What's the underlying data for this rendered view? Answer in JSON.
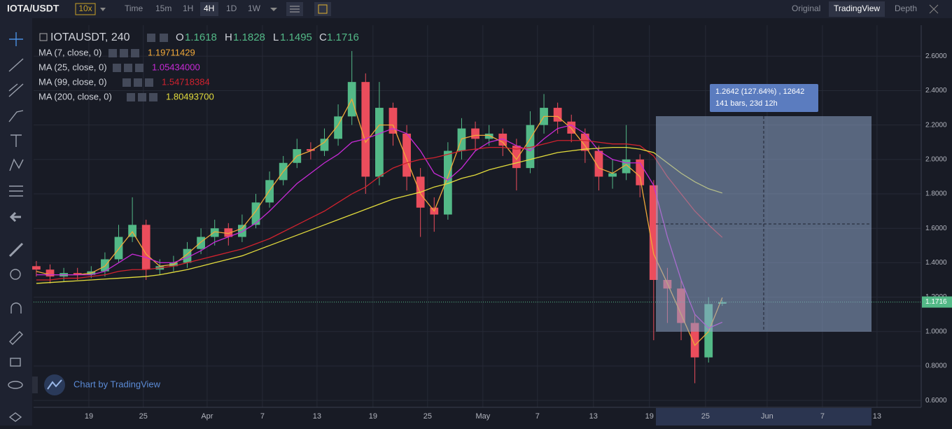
{
  "header": {
    "symbol": "IOTA/USDT",
    "leverage": "10x",
    "intervals": [
      "Time",
      "15m",
      "1H",
      "4H",
      "1D",
      "1W"
    ],
    "views": [
      "Original",
      "TradingView",
      "Depth"
    ]
  },
  "legend": {
    "symbol": "IOTAUSDT, 240",
    "keys": [
      "O",
      "H",
      "L",
      "C"
    ]
  },
  "measure": {
    "lines": [
      "1.2642 (127.64%) , 12642",
      "141 bars, 23d 12h"
    ]
  },
  "watermark": "Chart by TradingView",
  "chart_data": {
    "type": "candlestick",
    "up_color": "#53b987",
    "down_color": "#eb4d5c",
    "open": [
      1.38,
      1.36,
      1.32,
      1.34,
      1.33,
      1.35,
      1.42,
      1.55,
      1.62,
      1.36,
      1.38,
      1.4,
      1.48,
      1.55,
      1.6,
      1.55,
      1.62,
      1.75,
      1.88,
      1.98,
      2.06,
      2.05,
      2.12,
      2.25,
      2.45,
      1.9,
      2.3,
      2.15,
      1.9,
      1.72,
      1.68,
      2.05,
      2.18,
      2.12,
      2.15,
      2.08,
      1.95,
      2.2,
      2.3,
      2.22,
      2.15,
      2.05,
      1.9,
      1.92,
      2.0,
      1.85,
      1.3,
      1.25,
      1.05,
      0.85,
      1.1618
    ],
    "high": [
      1.41,
      1.39,
      1.37,
      1.37,
      1.38,
      1.46,
      1.62,
      1.78,
      1.65,
      1.42,
      1.44,
      1.52,
      1.6,
      1.65,
      1.63,
      1.68,
      1.8,
      1.93,
      2.02,
      2.12,
      2.1,
      2.18,
      2.32,
      2.63,
      2.5,
      2.45,
      2.33,
      2.2,
      1.95,
      1.78,
      2.1,
      2.24,
      2.22,
      2.2,
      2.18,
      2.12,
      2.28,
      2.38,
      2.33,
      2.26,
      2.18,
      2.08,
      2.0,
      2.2,
      2.03,
      1.88,
      1.37,
      1.3,
      1.1,
      1.2,
      1.1828
    ],
    "low": [
      1.32,
      1.28,
      1.29,
      1.3,
      1.31,
      1.32,
      1.4,
      1.52,
      1.3,
      1.33,
      1.35,
      1.37,
      1.45,
      1.5,
      1.5,
      1.52,
      1.6,
      1.72,
      1.85,
      1.95,
      2.0,
      2.02,
      2.08,
      2.2,
      1.8,
      1.85,
      2.08,
      1.82,
      1.55,
      1.58,
      1.65,
      2.0,
      2.05,
      2.08,
      2.02,
      1.82,
      1.92,
      2.15,
      2.15,
      2.1,
      1.98,
      1.82,
      1.83,
      1.88,
      1.78,
      0.95,
      1.05,
      0.95,
      0.7,
      0.82,
      1.1495
    ],
    "close": [
      1.36,
      1.32,
      1.34,
      1.33,
      1.35,
      1.42,
      1.55,
      1.62,
      1.36,
      1.38,
      1.4,
      1.48,
      1.55,
      1.6,
      1.55,
      1.62,
      1.75,
      1.88,
      1.98,
      2.06,
      2.05,
      2.12,
      2.25,
      2.45,
      1.9,
      2.3,
      2.15,
      1.9,
      1.72,
      1.68,
      2.05,
      2.18,
      2.12,
      2.15,
      2.08,
      1.95,
      2.2,
      2.3,
      2.22,
      2.15,
      2.05,
      1.9,
      1.92,
      2.0,
      1.85,
      1.3,
      1.25,
      1.05,
      0.85,
      1.16,
      1.1716
    ],
    "series": [
      {
        "name": "MA (7, close, 0)",
        "color": "#f0a83a",
        "legend_value": "1.19711429",
        "values": [
          1.35,
          1.33,
          1.33,
          1.33,
          1.34,
          1.38,
          1.48,
          1.58,
          1.45,
          1.38,
          1.39,
          1.45,
          1.52,
          1.58,
          1.57,
          1.6,
          1.7,
          1.82,
          1.93,
          2.02,
          2.05,
          2.1,
          2.2,
          2.35,
          2.1,
          2.2,
          2.2,
          2.0,
          1.8,
          1.7,
          1.9,
          2.12,
          2.14,
          2.14,
          2.1,
          2.0,
          2.12,
          2.25,
          2.25,
          2.18,
          2.08,
          1.95,
          1.92,
          1.97,
          1.9,
          1.45,
          1.28,
          1.1,
          0.92,
          1.0,
          1.19711429
        ]
      },
      {
        "name": "MA (25, close, 0)",
        "color": "#c72ad6",
        "legend_value": "1.05434000",
        "values": [
          1.33,
          1.33,
          1.33,
          1.33,
          1.33,
          1.35,
          1.4,
          1.45,
          1.43,
          1.4,
          1.4,
          1.43,
          1.47,
          1.52,
          1.55,
          1.58,
          1.63,
          1.7,
          1.78,
          1.86,
          1.92,
          1.98,
          2.03,
          2.1,
          2.12,
          2.15,
          2.18,
          2.15,
          2.05,
          1.92,
          1.88,
          1.95,
          2.05,
          2.1,
          2.12,
          2.08,
          2.05,
          2.12,
          2.18,
          2.2,
          2.15,
          2.05,
          2.0,
          1.98,
          1.98,
          1.85,
          1.55,
          1.3,
          1.1,
          1.02,
          1.05434
        ]
      },
      {
        "name": "MA (99, close, 0)",
        "color": "#d0222e",
        "legend_value": "1.54718384",
        "values": [
          1.3,
          1.3,
          1.31,
          1.31,
          1.32,
          1.33,
          1.35,
          1.36,
          1.36,
          1.37,
          1.38,
          1.4,
          1.42,
          1.44,
          1.46,
          1.48,
          1.51,
          1.54,
          1.58,
          1.62,
          1.66,
          1.7,
          1.75,
          1.8,
          1.84,
          1.9,
          1.95,
          1.98,
          2.0,
          2.01,
          2.03,
          2.05,
          2.06,
          2.07,
          2.07,
          2.06,
          2.07,
          2.09,
          2.11,
          2.11,
          2.11,
          2.1,
          2.09,
          2.09,
          2.08,
          2.02,
          1.9,
          1.8,
          1.7,
          1.62,
          1.54718384
        ]
      },
      {
        "name": "MA (200, close, 0)",
        "color": "#e3dc3c",
        "legend_value": "1.80493700",
        "values": [
          1.28,
          1.285,
          1.29,
          1.295,
          1.3,
          1.305,
          1.31,
          1.315,
          1.32,
          1.33,
          1.345,
          1.36,
          1.38,
          1.4,
          1.42,
          1.44,
          1.47,
          1.5,
          1.53,
          1.56,
          1.59,
          1.62,
          1.65,
          1.68,
          1.71,
          1.74,
          1.77,
          1.79,
          1.81,
          1.84,
          1.86,
          1.89,
          1.91,
          1.94,
          1.96,
          1.98,
          2.0,
          2.02,
          2.04,
          2.05,
          2.06,
          2.065,
          2.07,
          2.07,
          2.06,
          2.04,
          1.98,
          1.92,
          1.87,
          1.83,
          1.804937
        ]
      }
    ],
    "xlim": [
      -0.2,
      64.5
    ],
    "ylim": [
      0.56,
      2.78
    ],
    "xticks": [
      {
        "value": 3.83,
        "label": "19"
      },
      {
        "value": 7.8,
        "label": "25"
      },
      {
        "value": 12.45,
        "label": "Apr"
      },
      {
        "value": 16.48,
        "label": "7"
      },
      {
        "value": 20.46,
        "label": "13"
      },
      {
        "value": 24.54,
        "label": "19"
      },
      {
        "value": 28.52,
        "label": "25"
      },
      {
        "value": 32.55,
        "label": "May"
      },
      {
        "value": 36.53,
        "label": "7"
      },
      {
        "value": 40.61,
        "label": "13"
      },
      {
        "value": 44.69,
        "label": "19"
      },
      {
        "value": 48.78,
        "label": "25"
      },
      {
        "value": 53.27,
        "label": "Jun"
      },
      {
        "value": 57.3,
        "label": "7"
      },
      {
        "value": 61.28,
        "label": "13"
      }
    ],
    "yticks": [
      {
        "value": 0.6,
        "label": "0.6000"
      },
      {
        "value": 0.8,
        "label": "0.8000"
      },
      {
        "value": 1.0,
        "label": "1.0000"
      },
      {
        "value": 1.2,
        "label": "1.2000"
      },
      {
        "value": 1.4,
        "label": "1.4000"
      },
      {
        "value": 1.6,
        "label": "1.6000"
      },
      {
        "value": 1.8,
        "label": "1.8000"
      },
      {
        "value": 2.0,
        "label": "2.0000"
      },
      {
        "value": 2.2,
        "label": "2.2000"
      },
      {
        "value": 2.4,
        "label": "2.4000"
      },
      {
        "value": 2.6,
        "label": "2.6000"
      }
    ],
    "grid": true
  }
}
